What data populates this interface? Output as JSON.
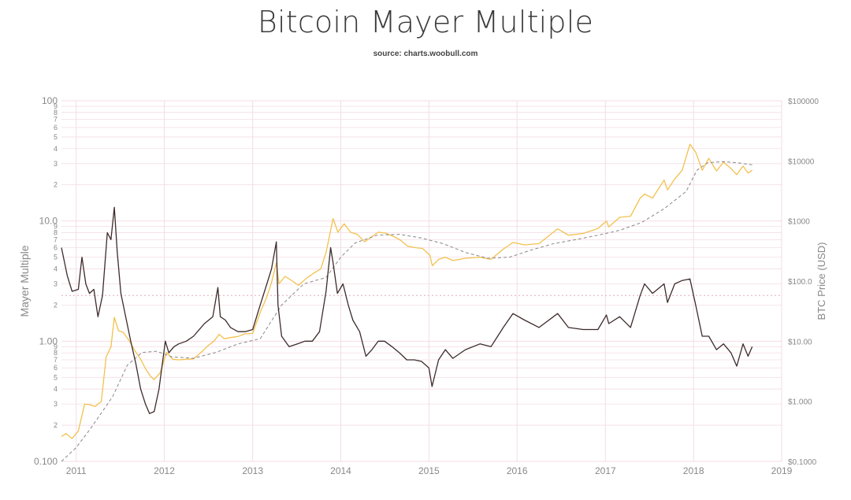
{
  "chart_data": {
    "type": "line",
    "title": "Bitcoin Mayer Multiple",
    "subtitle": "source: charts.woobull.com",
    "ylabel_left": "Mayer Multiple",
    "ylabel_right": "BTC Price (USD)",
    "y_left_scale": "log",
    "y_right_scale": "log",
    "y_left_range": [
      0.1,
      100
    ],
    "y_right_range": [
      0.1,
      100000
    ],
    "x_range": [
      "2010-11-01",
      "2019-01-01"
    ],
    "x_ticks": [
      "2011",
      "2012",
      "2013",
      "2014",
      "2015",
      "2016",
      "2017",
      "2018",
      "2019"
    ],
    "y_left_major_ticks": [
      "100",
      "10.0",
      "1.00",
      "0.100"
    ],
    "y_left_minor_labels": [
      "2",
      "3",
      "4",
      "5",
      "6",
      "7",
      "8",
      "9"
    ],
    "y_right_ticks": [
      "$100000",
      "$10000",
      "$1000",
      "$100.0",
      "$10.00",
      "$1.000",
      "$0.1000"
    ],
    "reference_line": {
      "axis": "left",
      "value": 2.4,
      "style": "dotted",
      "color": "#e8b4c4"
    },
    "grid": true,
    "colors": {
      "price": "#f2c14e",
      "mayer": "#3d2b2b",
      "ma200": "#888888",
      "grid": "#f3dde6"
    },
    "series": [
      {
        "key": "price",
        "axis": "right",
        "style": "solid",
        "x": [
          "2010-11-01",
          "2010-11-20",
          "2010-12-15",
          "2011-01-10",
          "2011-02-05",
          "2011-02-25",
          "2011-03-20",
          "2011-04-15",
          "2011-05-05",
          "2011-05-25",
          "2011-06-08",
          "2011-06-25",
          "2011-07-15",
          "2011-08-10",
          "2011-09-01",
          "2011-09-25",
          "2011-10-15",
          "2011-11-05",
          "2011-11-20",
          "2011-12-15",
          "2012-01-10",
          "2012-02-05",
          "2012-03-01",
          "2012-04-01",
          "2012-05-01",
          "2012-06-01",
          "2012-07-01",
          "2012-07-25",
          "2012-08-15",
          "2012-09-05",
          "2012-10-01",
          "2012-11-01",
          "2012-12-01",
          "2013-01-01",
          "2013-02-01",
          "2013-03-01",
          "2013-03-20",
          "2013-04-09",
          "2013-04-20",
          "2013-05-15",
          "2013-06-15",
          "2013-07-10",
          "2013-08-10",
          "2013-09-10",
          "2013-10-10",
          "2013-11-01",
          "2013-11-20",
          "2013-11-30",
          "2013-12-20",
          "2014-01-15",
          "2014-02-10",
          "2014-03-10",
          "2014-04-10",
          "2014-05-10",
          "2014-06-05",
          "2014-07-05",
          "2014-08-05",
          "2014-09-05",
          "2014-10-05",
          "2014-11-05",
          "2014-12-05",
          "2015-01-05",
          "2015-01-15",
          "2015-02-10",
          "2015-03-10",
          "2015-04-10",
          "2015-06-01",
          "2015-08-01",
          "2015-09-15",
          "2015-11-05",
          "2015-12-15",
          "2016-02-01",
          "2016-04-01",
          "2016-06-17",
          "2016-08-01",
          "2016-10-01",
          "2016-12-01",
          "2017-01-05",
          "2017-01-15",
          "2017-03-01",
          "2017-04-15",
          "2017-05-25",
          "2017-06-12",
          "2017-07-15",
          "2017-09-01",
          "2017-09-15",
          "2017-10-15",
          "2017-11-15",
          "2017-12-17",
          "2018-01-10",
          "2018-02-06",
          "2018-03-05",
          "2018-04-06",
          "2018-05-05",
          "2018-06-05",
          "2018-06-29",
          "2018-07-25",
          "2018-08-15",
          "2018-09-01"
        ],
        "y": [
          0.26,
          0.29,
          0.24,
          0.32,
          0.9,
          0.88,
          0.82,
          1.0,
          5.5,
          8.0,
          25.0,
          15.0,
          14.0,
          10.0,
          7.0,
          5.0,
          3.5,
          2.6,
          2.3,
          3.0,
          6.5,
          5.0,
          4.9,
          5.0,
          5.1,
          6.5,
          8.5,
          10.0,
          13.0,
          11.0,
          11.5,
          12.0,
          13.3,
          13.5,
          30.0,
          55.0,
          95.0,
          200.0,
          90.0,
          120.0,
          100.0,
          85.0,
          110.0,
          135.0,
          160.0,
          300.0,
          700.0,
          1100.0,
          650.0,
          900.0,
          650.0,
          600.0,
          450.0,
          550.0,
          650.0,
          630.0,
          560.0,
          480.0,
          380.0,
          360.0,
          350.0,
          270.0,
          180.0,
          230.0,
          250.0,
          220.0,
          240.0,
          250.0,
          230.0,
          340.0,
          440.0,
          400.0,
          420.0,
          740.0,
          580.0,
          620.0,
          750.0,
          1000.0,
          800.0,
          1150.0,
          1200.0,
          2400.0,
          2800.0,
          2400.0,
          4800.0,
          3300.0,
          5000.0,
          7000.0,
          19000.0,
          14000.0,
          7000.0,
          11000.0,
          6800.0,
          9500.0,
          7500.0,
          5900.0,
          8200.0,
          6300.0,
          7000.0
        ]
      },
      {
        "key": "ma200",
        "axis": "right",
        "style": "dashed",
        "x": [
          "2010-11-01",
          "2011-01-01",
          "2011-03-01",
          "2011-06-01",
          "2011-08-01",
          "2011-10-01",
          "2011-12-01",
          "2012-02-01",
          "2012-05-01",
          "2012-08-01",
          "2012-11-01",
          "2013-02-01",
          "2013-05-01",
          "2013-08-01",
          "2013-11-01",
          "2014-01-01",
          "2014-03-01",
          "2014-06-01",
          "2014-09-01",
          "2014-12-01",
          "2015-03-01",
          "2015-06-01",
          "2015-09-01",
          "2015-12-01",
          "2016-03-01",
          "2016-06-01",
          "2016-09-01",
          "2016-12-01",
          "2017-03-01",
          "2017-06-01",
          "2017-09-01",
          "2017-12-01",
          "2018-01-15",
          "2018-03-01",
          "2018-05-01",
          "2018-07-01",
          "2018-09-01"
        ],
        "y": [
          0.1,
          0.17,
          0.35,
          1.2,
          4.0,
          6.5,
          6.8,
          5.5,
          5.2,
          6.5,
          9.0,
          11.0,
          40.0,
          90.0,
          115.0,
          250.0,
          430.0,
          580.0,
          600.0,
          520.0,
          420.0,
          300.0,
          240.0,
          250.0,
          330.0,
          420.0,
          490.0,
          580.0,
          700.0,
          950.0,
          1600.0,
          3100.0,
          7000.0,
          9300.0,
          9700.0,
          9300.0,
          8600.0
        ]
      },
      {
        "key": "mayer",
        "axis": "left",
        "style": "solid",
        "x": [
          "2010-11-01",
          "2010-11-25",
          "2010-12-15",
          "2011-01-10",
          "2011-01-25",
          "2011-02-10",
          "2011-02-25",
          "2011-03-15",
          "2011-04-01",
          "2011-04-20",
          "2011-05-10",
          "2011-05-25",
          "2011-06-08",
          "2011-06-20",
          "2011-07-05",
          "2011-07-25",
          "2011-08-15",
          "2011-09-05",
          "2011-09-25",
          "2011-10-15",
          "2011-11-01",
          "2011-11-20",
          "2011-12-10",
          "2012-01-05",
          "2012-01-20",
          "2012-02-10",
          "2012-03-01",
          "2012-04-01",
          "2012-05-01",
          "2012-06-15",
          "2012-07-20",
          "2012-08-10",
          "2012-08-20",
          "2012-09-10",
          "2012-10-01",
          "2012-11-01",
          "2012-12-01",
          "2013-01-01",
          "2013-02-01",
          "2013-03-01",
          "2013-03-20",
          "2013-04-09",
          "2013-04-16",
          "2013-05-01",
          "2013-06-01",
          "2013-07-05",
          "2013-08-05",
          "2013-09-05",
          "2013-10-05",
          "2013-11-01",
          "2013-11-20",
          "2013-11-30",
          "2013-12-18",
          "2014-01-10",
          "2014-02-01",
          "2014-02-20",
          "2014-03-20",
          "2014-04-15",
          "2014-05-10",
          "2014-06-05",
          "2014-07-01",
          "2014-08-01",
          "2014-09-01",
          "2014-10-01",
          "2014-11-01",
          "2014-12-01",
          "2015-01-01",
          "2015-01-14",
          "2015-02-10",
          "2015-03-10",
          "2015-04-10",
          "2015-06-01",
          "2015-08-01",
          "2015-09-15",
          "2015-11-05",
          "2015-12-15",
          "2016-02-01",
          "2016-04-01",
          "2016-06-17",
          "2016-08-01",
          "2016-10-01",
          "2016-12-01",
          "2017-01-05",
          "2017-01-15",
          "2017-03-01",
          "2017-04-15",
          "2017-05-25",
          "2017-06-12",
          "2017-07-15",
          "2017-09-01",
          "2017-09-15",
          "2017-10-15",
          "2017-11-15",
          "2017-12-17",
          "2018-01-10",
          "2018-02-06",
          "2018-03-05",
          "2018-04-06",
          "2018-05-05",
          "2018-06-05",
          "2018-06-29",
          "2018-07-25",
          "2018-08-15",
          "2018-09-01"
        ],
        "y": [
          6.0,
          3.5,
          2.6,
          2.7,
          5.0,
          3.0,
          2.5,
          2.7,
          1.6,
          2.4,
          8.0,
          7.0,
          13.0,
          5.5,
          2.5,
          1.6,
          1.0,
          0.65,
          0.4,
          0.3,
          0.25,
          0.26,
          0.4,
          1.0,
          0.8,
          0.9,
          0.95,
          1.0,
          1.1,
          1.4,
          1.6,
          2.8,
          1.6,
          1.5,
          1.3,
          1.2,
          1.2,
          1.25,
          2.0,
          3.0,
          4.0,
          6.7,
          2.0,
          1.1,
          0.9,
          0.95,
          1.0,
          1.0,
          1.2,
          2.6,
          6.0,
          4.5,
          2.5,
          3.0,
          2.0,
          1.5,
          1.2,
          0.75,
          0.85,
          1.0,
          1.0,
          0.9,
          0.8,
          0.7,
          0.7,
          0.68,
          0.6,
          0.42,
          0.7,
          0.85,
          0.72,
          0.85,
          0.95,
          0.9,
          1.3,
          1.7,
          1.5,
          1.3,
          1.7,
          1.3,
          1.25,
          1.25,
          1.65,
          1.4,
          1.6,
          1.3,
          2.4,
          3.0,
          2.5,
          3.0,
          2.1,
          3.0,
          3.2,
          3.3,
          2.0,
          1.1,
          1.1,
          0.85,
          0.95,
          0.8,
          0.62,
          0.95,
          0.75,
          0.9
        ]
      }
    ]
  }
}
